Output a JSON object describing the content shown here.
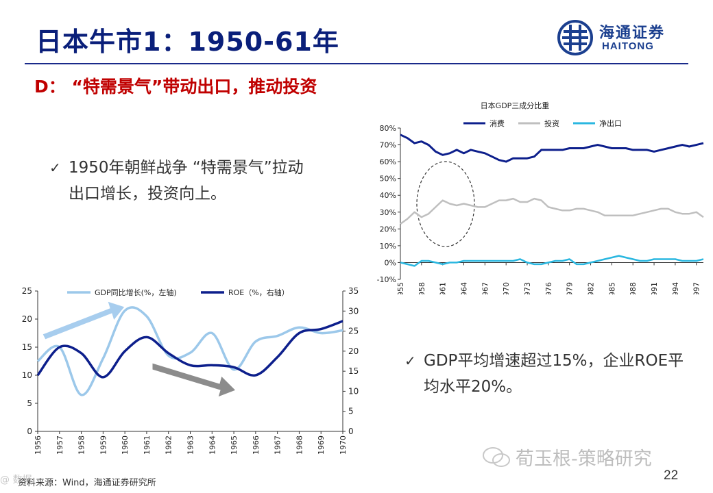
{
  "slide": {
    "title": "日本牛市1：1950-61年",
    "subtitle": "D：  “特需景气”带动出口，推动投资",
    "bullets": [
      "1950年朝鲜战争 “特需景气”拉动出口增长，投资向上。",
      "GDP平均增速超过15%，企业ROE平均水平20%。"
    ],
    "check_mark": "✓",
    "source": "资料来源：Wind，海通证券研究所",
    "page_number": "22",
    "watermark_text": "荀玉根-策略研究",
    "watermark_small": "@ 数据",
    "logo": {
      "name": "海通证券",
      "english": "HAITONG"
    },
    "colors": {
      "title": "#0a1f7a",
      "subtitle": "#c00000",
      "navy": "#0d1f8c",
      "gray": "#bfbfbf",
      "cyan": "#2ab7e0",
      "lightblue": "#9cc8ea"
    }
  },
  "chart_data": [
    {
      "type": "line",
      "title": "日本GDP三成分比重",
      "x": [
        "1955",
        "1956",
        "1957",
        "1958",
        "1959",
        "1960",
        "1961",
        "1962",
        "1963",
        "1964",
        "1965",
        "1966",
        "1967",
        "1968",
        "1969",
        "1970",
        "1971",
        "1972",
        "1973",
        "1974",
        "1975",
        "1976",
        "1977",
        "1978",
        "1979",
        "1980",
        "1981",
        "1982",
        "1983",
        "1984",
        "1985",
        "1986",
        "1987",
        "1988",
        "1989",
        "1990",
        "1991",
        "1992",
        "1993",
        "1994",
        "1995",
        "1996",
        "1997",
        "1998"
      ],
      "tick_labels": [
        "1955",
        "1958",
        "1961",
        "1964",
        "1967",
        "1970",
        "1973",
        "1976",
        "1979",
        "1982",
        "1985",
        "1988",
        "1991",
        "1994",
        "1997"
      ],
      "ylim": [
        -10,
        80
      ],
      "yticks": [
        "-10%",
        "0%",
        "10%",
        "20%",
        "30%",
        "40%",
        "50%",
        "60%",
        "70%",
        "80%"
      ],
      "series": [
        {
          "name": "消费",
          "values": [
            76,
            74,
            71,
            72,
            70,
            66,
            64,
            65,
            67,
            65,
            67,
            66,
            65,
            63,
            61,
            60,
            62,
            62,
            62,
            63,
            67,
            67,
            67,
            67,
            68,
            68,
            68,
            69,
            70,
            69,
            68,
            68,
            68,
            67,
            67,
            67,
            66,
            67,
            68,
            69,
            70,
            69,
            70,
            71
          ]
        },
        {
          "name": "投资",
          "values": [
            23,
            26,
            30,
            27,
            29,
            33,
            37,
            35,
            34,
            35,
            34,
            33,
            33,
            35,
            37,
            37,
            38,
            36,
            36,
            38,
            37,
            33,
            32,
            31,
            31,
            32,
            32,
            31,
            30,
            28,
            28,
            28,
            28,
            28,
            29,
            30,
            31,
            32,
            32,
            30,
            29,
            29,
            30,
            27
          ]
        },
        {
          "name": "净出口",
          "values": [
            0,
            -1,
            -2,
            1,
            1,
            0,
            -1,
            0,
            0,
            1,
            1,
            1,
            1,
            1,
            1,
            1,
            1,
            2,
            0,
            -1,
            -1,
            0,
            1,
            1,
            2,
            -1,
            -1,
            0,
            1,
            2,
            3,
            4,
            3,
            2,
            1,
            1,
            2,
            2,
            2,
            2,
            1,
            1,
            1,
            2
          ]
        }
      ],
      "legend_position": "top"
    },
    {
      "type": "line",
      "x": [
        "1956",
        "1957",
        "1958",
        "1959",
        "1960",
        "1961",
        "1962",
        "1963",
        "1964",
        "1965",
        "1966",
        "1967",
        "1968",
        "1969",
        "1970"
      ],
      "ylim_left": [
        0,
        25
      ],
      "ylim_right": [
        0,
        35
      ],
      "yticks_left": [
        "0",
        "5",
        "10",
        "15",
        "20",
        "25"
      ],
      "yticks_right": [
        "0",
        "5",
        "10",
        "15",
        "20",
        "25",
        "30",
        "35"
      ],
      "series": [
        {
          "name": "GDP同比增长(%，左轴)",
          "axis": "left",
          "values": [
            12.5,
            15.0,
            6.5,
            13.0,
            21.5,
            20.5,
            13.5,
            14.0,
            17.5,
            11.0,
            16.0,
            17.0,
            18.5,
            17.5,
            18.0
          ]
        },
        {
          "name": "ROE（%，右轴）",
          "axis": "right",
          "values": [
            14.0,
            21.0,
            19.5,
            13.5,
            20.0,
            23.5,
            19.5,
            16.5,
            16.5,
            16.0,
            14.0,
            18.5,
            24.5,
            25.5,
            27.5
          ]
        }
      ],
      "legend_position": "top"
    }
  ]
}
